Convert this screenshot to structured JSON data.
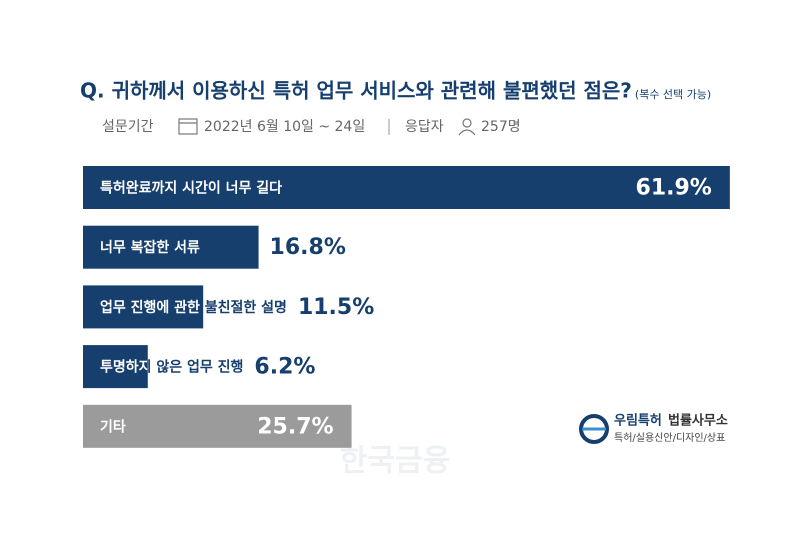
{
  "chart_data": {
    "type": "bar",
    "orientation": "horizontal",
    "title": "Q. 귀하께서 이용하신 특허 업무 서비스와 관련해 불편했던 점은?",
    "title_note": "(복수 선택 가능)",
    "survey_period_label": "설문기간",
    "survey_period": "2022년 6월 10일 ~ 24일",
    "respondents_label": "응답자",
    "respondents": "257명",
    "categories": [
      "특허완료까지 시간이 너무 길다",
      "너무 복잡한 서류",
      "업무 진행에 관한 불친절한 설명",
      "투명하지 않은 업무 진행",
      "기타"
    ],
    "values": [
      61.9,
      16.8,
      11.5,
      6.2,
      25.7
    ],
    "value_labels": [
      "61.9%",
      "16.8%",
      "11.5%",
      "6.2%",
      "25.7%"
    ],
    "colors": [
      "#163f6e",
      "#163f6e",
      "#163f6e",
      "#163f6e",
      "#9b9b9b"
    ],
    "logo": {
      "name_bold": "우림특허",
      "name": "법률사무소",
      "tagline": "특허/실용신안/디자인/상표"
    },
    "watermark": "한국금융"
  }
}
